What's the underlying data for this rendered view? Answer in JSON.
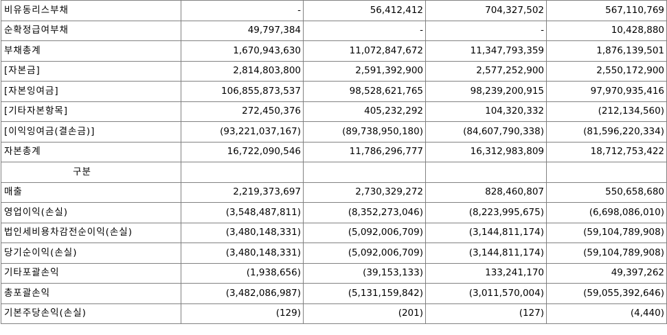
{
  "rows": [
    {
      "label": "비유동리스부채",
      "v": [
        "-",
        "56,412,412",
        "704,327,502",
        "567,110,769"
      ]
    },
    {
      "label": "순확정급여부채",
      "v": [
        "49,797,384",
        "-",
        "-",
        "10,428,880"
      ]
    },
    {
      "label": "부채총계",
      "v": [
        "1,670,943,630",
        "11,072,847,672",
        "11,347,793,359",
        "1,876,139,501"
      ]
    },
    {
      "label": "[자본금]",
      "v": [
        "2,814,803,800",
        "2,591,392,900",
        "2,577,252,900",
        "2,550,172,900"
      ]
    },
    {
      "label": "[자본잉여금]",
      "v": [
        "106,855,873,537",
        "98,528,621,765",
        "98,239,200,915",
        "97,970,935,416"
      ]
    },
    {
      "label": "[기타자본항목]",
      "v": [
        "272,450,376",
        "405,232,292",
        "104,320,332",
        "(212,134,560)"
      ]
    },
    {
      "label": "[이익잉여금(결손금)]",
      "v": [
        "(93,221,037,167)",
        "(89,738,950,180)",
        "(84,607,790,338)",
        "(81,596,220,334)"
      ]
    },
    {
      "label": "자본총계",
      "v": [
        "16,722,090,546",
        "11,786,296,777",
        "16,312,983,809",
        "18,712,753,422"
      ]
    },
    {
      "label": "구분",
      "v": [
        "",
        "",
        "",
        ""
      ]
    },
    {
      "label": "매출",
      "v": [
        "2,219,373,697",
        "2,730,329,272",
        "828,460,807",
        "550,658,680"
      ]
    },
    {
      "label": "영업이익(손실)",
      "v": [
        "(3,548,487,811)",
        "(8,352,273,046)",
        "(8,223,995,675)",
        "(6,698,086,010)"
      ]
    },
    {
      "label": "법인세비용차감전순이익(손실)",
      "v": [
        "(3,480,148,331)",
        "(5,092,006,709)",
        "(3,144,811,174)",
        "(59,104,789,908)"
      ]
    },
    {
      "label": "당기순이익(손실)",
      "v": [
        "(3,480,148,331)",
        "(5,092,006,709)",
        "(3,144,811,174)",
        "(59,104,789,908)"
      ]
    },
    {
      "label": "기타포괄손익",
      "v": [
        "(1,938,656)",
        "(39,153,133)",
        "133,241,170",
        "49,397,262"
      ]
    },
    {
      "label": "총포괄손익",
      "v": [
        "(3,482,086,987)",
        "(5,131,159,842)",
        "(3,011,570,004)",
        "(59,055,392,646)"
      ]
    },
    {
      "label": "기본주당손익(손실)",
      "v": [
        "(129)",
        "(201)",
        "(127)",
        "(4,440)"
      ]
    }
  ]
}
